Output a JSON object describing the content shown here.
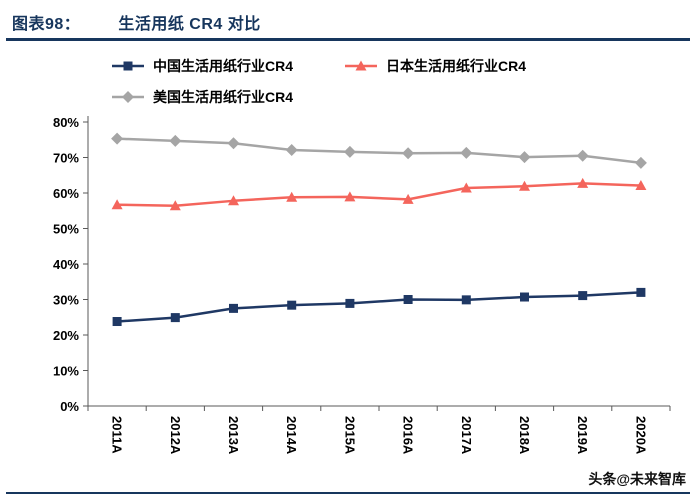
{
  "header": {
    "label": "图表98：",
    "title": "生活用纸 CR4 对比"
  },
  "watermark": "头条@未来智库",
  "colors": {
    "navy": "#17365d",
    "axis": "#595959",
    "china": "#1f3864",
    "japan": "#f4655c",
    "us": "#a5a5a5"
  },
  "chart_data": {
    "type": "line",
    "title": "生活用纸 CR4 对比",
    "categories": [
      "2011A",
      "2012A",
      "2013A",
      "2014A",
      "2015A",
      "2016A",
      "2017A",
      "2018A",
      "2019A",
      "2020A"
    ],
    "series": [
      {
        "name": "中国生活用纸行业CR4",
        "marker": "square",
        "color": "#1f3864",
        "values": [
          23.8,
          24.9,
          27.5,
          28.4,
          28.9,
          30.0,
          29.9,
          30.7,
          31.1,
          32.0
        ]
      },
      {
        "name": "日本生活用纸行业CR4",
        "marker": "triangle",
        "color": "#f4655c",
        "values": [
          56.7,
          56.4,
          57.8,
          58.8,
          58.9,
          58.2,
          61.4,
          61.9,
          62.7,
          62.1
        ]
      },
      {
        "name": "美国生活用纸行业CR4",
        "marker": "diamond",
        "color": "#a5a5a5",
        "values": [
          75.3,
          74.7,
          74.0,
          72.1,
          71.6,
          71.2,
          71.3,
          70.1,
          70.5,
          68.5
        ]
      }
    ],
    "xlabel": "",
    "ylabel": "",
    "ylim": [
      0,
      80
    ],
    "ytick_step": 10,
    "ytick_format": "percent",
    "grid": false,
    "legend_position": "top"
  }
}
